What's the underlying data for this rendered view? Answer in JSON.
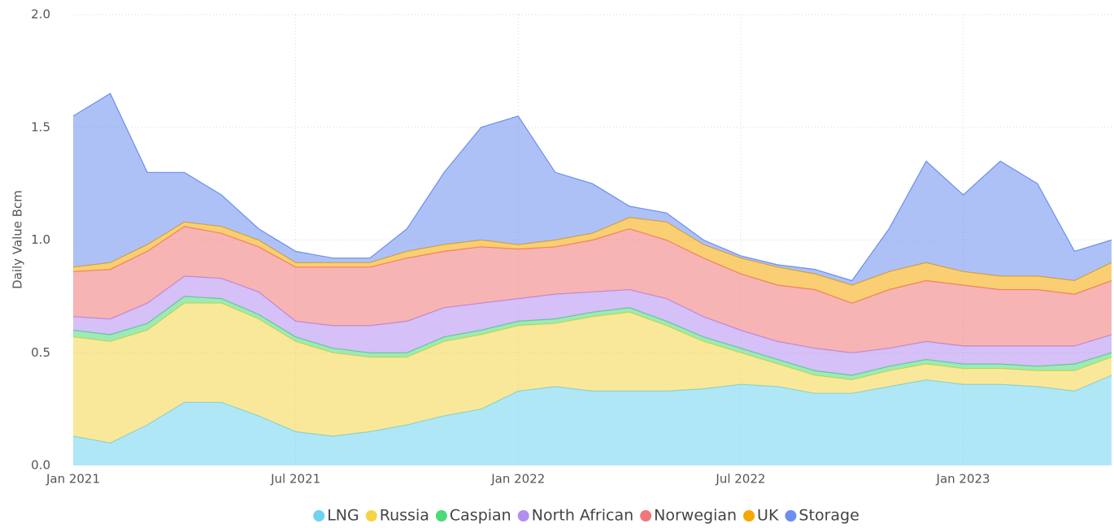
{
  "chart_data": {
    "type": "stacked-area",
    "y_label": "Daily Value Bcm",
    "x": [
      "2021-01",
      "2021-02",
      "2021-03",
      "2021-04",
      "2021-05",
      "2021-06",
      "2021-07",
      "2021-08",
      "2021-09",
      "2021-10",
      "2021-11",
      "2021-12",
      "2022-01",
      "2022-02",
      "2022-03",
      "2022-04",
      "2022-05",
      "2022-06",
      "2022-07",
      "2022-08",
      "2022-09",
      "2022-10",
      "2022-11",
      "2022-12",
      "2023-01",
      "2023-02",
      "2023-03",
      "2023-04",
      "2023-05"
    ],
    "xticks": [
      {
        "value": "2021-01",
        "label": "Jan 2021"
      },
      {
        "value": "2021-07",
        "label": "Jul 2021"
      },
      {
        "value": "2022-01",
        "label": "Jan 2022"
      },
      {
        "value": "2022-07",
        "label": "Jul 2022"
      },
      {
        "value": "2023-01",
        "label": "Jan 2023"
      }
    ],
    "ylim": [
      0,
      2
    ],
    "yticks": [
      {
        "value": 0,
        "label": "0.0"
      },
      0.5,
      {
        "value": 1,
        "label": "1.0"
      },
      1.5,
      {
        "value": 2,
        "label": "2.0"
      }
    ],
    "grid": true,
    "series": [
      {
        "name": "LNG",
        "color": "#6fd3f0",
        "values": [
          0.13,
          0.1,
          0.18,
          0.28,
          0.28,
          0.22,
          0.15,
          0.13,
          0.15,
          0.18,
          0.22,
          0.25,
          0.33,
          0.35,
          0.33,
          0.33,
          0.33,
          0.34,
          0.36,
          0.35,
          0.32,
          0.32,
          0.35,
          0.38,
          0.36,
          0.36,
          0.35,
          0.33,
          0.4
        ]
      },
      {
        "name": "Russia",
        "color": "#f5d547",
        "values": [
          0.44,
          0.45,
          0.42,
          0.44,
          0.44,
          0.43,
          0.4,
          0.37,
          0.33,
          0.3,
          0.33,
          0.33,
          0.29,
          0.28,
          0.33,
          0.35,
          0.29,
          0.21,
          0.14,
          0.1,
          0.08,
          0.06,
          0.07,
          0.07,
          0.07,
          0.07,
          0.07,
          0.09,
          0.08
        ]
      },
      {
        "name": "Caspian",
        "color": "#4cd97a",
        "values": [
          0.03,
          0.03,
          0.03,
          0.03,
          0.02,
          0.02,
          0.02,
          0.02,
          0.02,
          0.02,
          0.02,
          0.02,
          0.02,
          0.02,
          0.02,
          0.02,
          0.02,
          0.02,
          0.02,
          0.02,
          0.02,
          0.02,
          0.02,
          0.02,
          0.02,
          0.02,
          0.02,
          0.03,
          0.02
        ]
      },
      {
        "name": "North African",
        "color": "#b38df0",
        "values": [
          0.06,
          0.07,
          0.09,
          0.09,
          0.09,
          0.1,
          0.07,
          0.1,
          0.12,
          0.14,
          0.13,
          0.12,
          0.1,
          0.11,
          0.09,
          0.08,
          0.1,
          0.09,
          0.08,
          0.08,
          0.1,
          0.1,
          0.08,
          0.08,
          0.08,
          0.08,
          0.09,
          0.08,
          0.08
        ]
      },
      {
        "name": "Norwegian",
        "color": "#f07779",
        "values": [
          0.2,
          0.22,
          0.23,
          0.22,
          0.2,
          0.2,
          0.24,
          0.26,
          0.26,
          0.28,
          0.25,
          0.25,
          0.22,
          0.21,
          0.23,
          0.27,
          0.26,
          0.26,
          0.25,
          0.25,
          0.26,
          0.22,
          0.26,
          0.27,
          0.27,
          0.25,
          0.25,
          0.23,
          0.24
        ]
      },
      {
        "name": "UK",
        "color": "#f5a800",
        "values": [
          0.02,
          0.03,
          0.03,
          0.02,
          0.03,
          0.03,
          0.02,
          0.02,
          0.02,
          0.03,
          0.03,
          0.03,
          0.02,
          0.03,
          0.03,
          0.05,
          0.08,
          0.06,
          0.07,
          0.08,
          0.07,
          0.08,
          0.08,
          0.08,
          0.06,
          0.06,
          0.06,
          0.06,
          0.08
        ]
      },
      {
        "name": "Storage",
        "color": "#6b8ef0",
        "values": [
          0.67,
          0.75,
          0.32,
          0.22,
          0.14,
          0.05,
          0.05,
          0.02,
          0.02,
          0.1,
          0.32,
          0.5,
          0.57,
          0.3,
          0.22,
          0.05,
          0.04,
          0.02,
          0.01,
          0.01,
          0.02,
          0.02,
          0.19,
          0.45,
          0.34,
          0.51,
          0.41,
          0.13,
          0.1
        ]
      }
    ]
  }
}
